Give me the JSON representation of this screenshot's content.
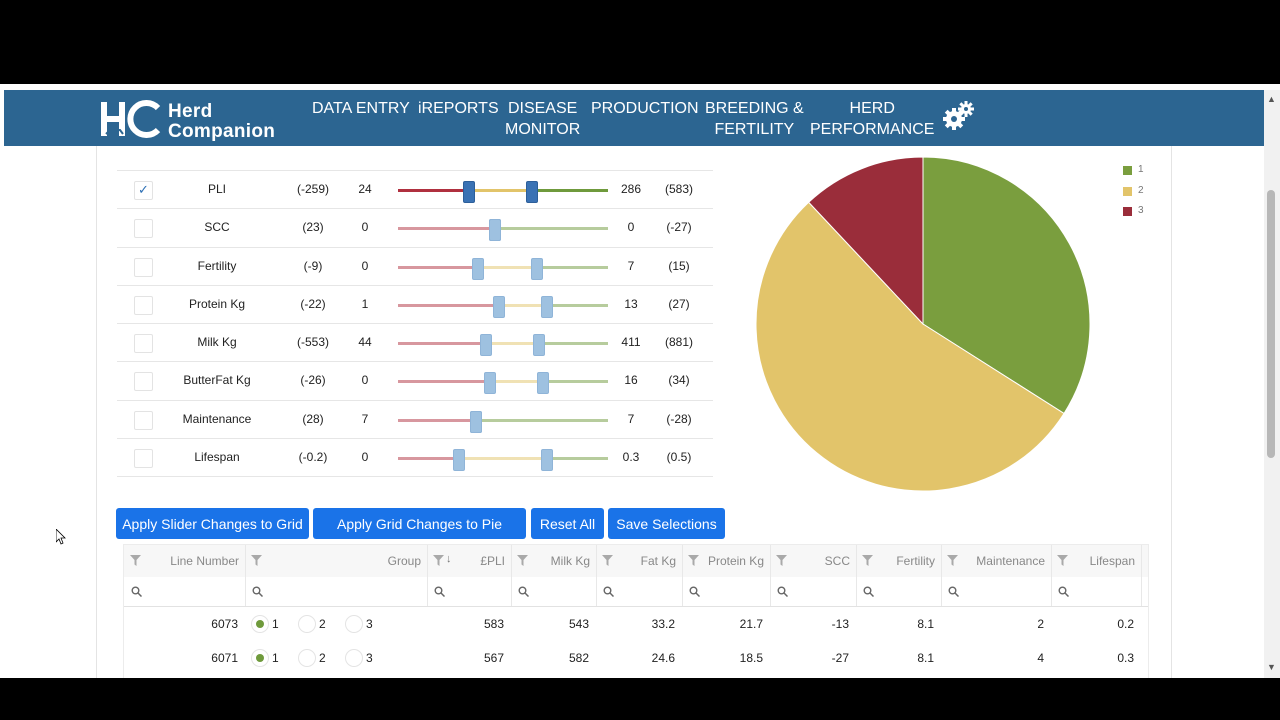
{
  "header": {
    "logo_line1": "Herd",
    "logo_line2": "Companion",
    "nav": [
      {
        "label": "DATA ENTRY"
      },
      {
        "label": "iREPORTS"
      },
      {
        "label": "DISEASE\nMONITOR"
      },
      {
        "label": "PRODUCTION"
      },
      {
        "label": "BREEDING &\nFERTILITY"
      },
      {
        "label": "HERD\nPERFORMANCE"
      }
    ],
    "settings_icon": "gears-icon"
  },
  "sliders": [
    {
      "name": "PLI",
      "checked": true,
      "min": "(-259)",
      "low": "24",
      "high": "286",
      "max": "(583)",
      "low_frac": 0.34,
      "high_frac": 0.64
    },
    {
      "name": "SCC",
      "checked": false,
      "min": "(23)",
      "low": "0",
      "high": "0",
      "max": "(-27)",
      "low_frac": 0.46,
      "high_frac": 0.46
    },
    {
      "name": "Fertility",
      "checked": false,
      "min": "(-9)",
      "low": "0",
      "high": "7",
      "max": "(15)",
      "low_frac": 0.38,
      "high_frac": 0.66
    },
    {
      "name": "Protein Kg",
      "checked": false,
      "min": "(-22)",
      "low": "1",
      "high": "13",
      "max": "(27)",
      "low_frac": 0.48,
      "high_frac": 0.71
    },
    {
      "name": "Milk Kg",
      "checked": false,
      "min": "(-553)",
      "low": "44",
      "high": "411",
      "max": "(881)",
      "low_frac": 0.42,
      "high_frac": 0.67
    },
    {
      "name": "ButterFat Kg",
      "checked": false,
      "min": "(-26)",
      "low": "0",
      "high": "16",
      "max": "(34)",
      "low_frac": 0.44,
      "high_frac": 0.69
    },
    {
      "name": "Maintenance",
      "checked": false,
      "min": "(28)",
      "low": "7",
      "high": "7",
      "max": "(-28)",
      "low_frac": 0.37,
      "high_frac": 0.37
    },
    {
      "name": "Lifespan",
      "checked": false,
      "min": "(-0.2)",
      "low": "0",
      "high": "0.3",
      "max": "(0.5)",
      "low_frac": 0.29,
      "high_frac": 0.71
    }
  ],
  "chart_data": {
    "type": "pie",
    "slices": [
      {
        "label": "1",
        "value": 34,
        "color": "#7a9e3e"
      },
      {
        "label": "2",
        "value": 54,
        "color": "#e2c46a"
      },
      {
        "label": "3",
        "value": 12,
        "color": "#9a2d3a"
      }
    ],
    "legend": "top-right"
  },
  "buttons": [
    {
      "label": "Apply Slider Changes to Grid"
    },
    {
      "label": "Apply Grid Changes to Pie Chart"
    },
    {
      "label": "Reset All"
    },
    {
      "label": "Save Selections"
    }
  ],
  "grid": {
    "columns": [
      "Line Number",
      "Group",
      "£PLI",
      "Milk Kg",
      "Fat Kg",
      "Protein Kg",
      "SCC",
      "Fertility",
      "Maintenance",
      "Lifespan"
    ],
    "group_options": [
      "1",
      "2",
      "3"
    ],
    "rows": [
      {
        "line": "6073",
        "group": "1",
        "pli": "583",
        "milk": "543",
        "fat": "33.2",
        "protein": "21.7",
        "scc": "-13",
        "fertility": "8.1",
        "maintenance": "2",
        "lifespan": "0.2"
      },
      {
        "line": "6071",
        "group": "1",
        "pli": "567",
        "milk": "582",
        "fat": "24.6",
        "protein": "18.5",
        "scc": "-27",
        "fertility": "8.1",
        "maintenance": "4",
        "lifespan": "0.3"
      }
    ]
  },
  "colors": {
    "header_bg": "#2c6591",
    "button_bg": "#1a73e8",
    "slider_red": "#b0303f",
    "slider_yellow": "#e2c46a",
    "slider_green": "#6f9a3c"
  }
}
